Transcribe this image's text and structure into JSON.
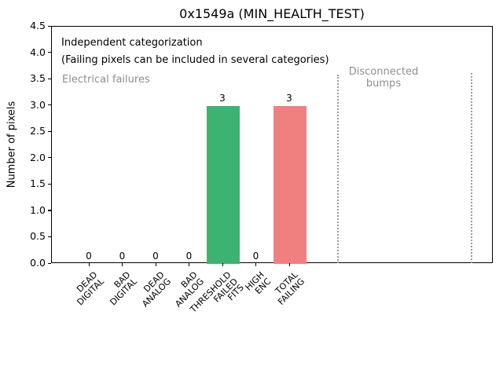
{
  "title": "0x1549a (MIN_HEALTH_TEST)",
  "ylabel": "Number of pixels",
  "annotations": {
    "line1": "Independent categorization",
    "line2": "(Failing pixels can be included in several categories)",
    "electrical_section_label": "Electrical failures",
    "disconnected_section_label": "Disconnected\nbumps"
  },
  "chart_data": {
    "type": "bar",
    "title": "0x1549a (MIN_HEALTH_TEST)",
    "xlabel": "",
    "ylabel": "Number of pixels",
    "ylim": [
      0,
      4.5
    ],
    "ytick_labels": [
      "0.0",
      "0.5",
      "1.0",
      "1.5",
      "2.0",
      "2.5",
      "3.0",
      "3.5",
      "4.0",
      "4.5"
    ],
    "categories": [
      "DEAD\nDIGITAL",
      "BAD\nDIGITAL",
      "DEAD\nANALOG",
      "BAD\nANALOG",
      "THRESHOLD\nFAILED\nFITS",
      "HIGH\nENC",
      "TOTAL\nFAILING"
    ],
    "values": [
      0,
      0,
      0,
      0,
      3,
      0,
      3
    ],
    "bar_value_labels": [
      "0",
      "0",
      "0",
      "0",
      "3",
      "0",
      "3"
    ],
    "bar_colors": [
      null,
      null,
      null,
      null,
      "#3cb371",
      null,
      "#f08080"
    ],
    "grid": false,
    "legend": null,
    "sections": [
      {
        "label": "Electrical failures",
        "style": "gray-text-left"
      },
      {
        "label": "Disconnected\nbumps",
        "style": "gray-text-between-dotted-lines"
      }
    ],
    "annotation_text": [
      "Independent categorization",
      "(Failing pixels can be included in several categories)"
    ],
    "colors": {
      "threshold_failed_fits_bar": "#3cb371",
      "total_failing_bar": "#f08080",
      "section_text": "#8e8e8e",
      "divider_dotted": "#9b9b9b"
    }
  }
}
